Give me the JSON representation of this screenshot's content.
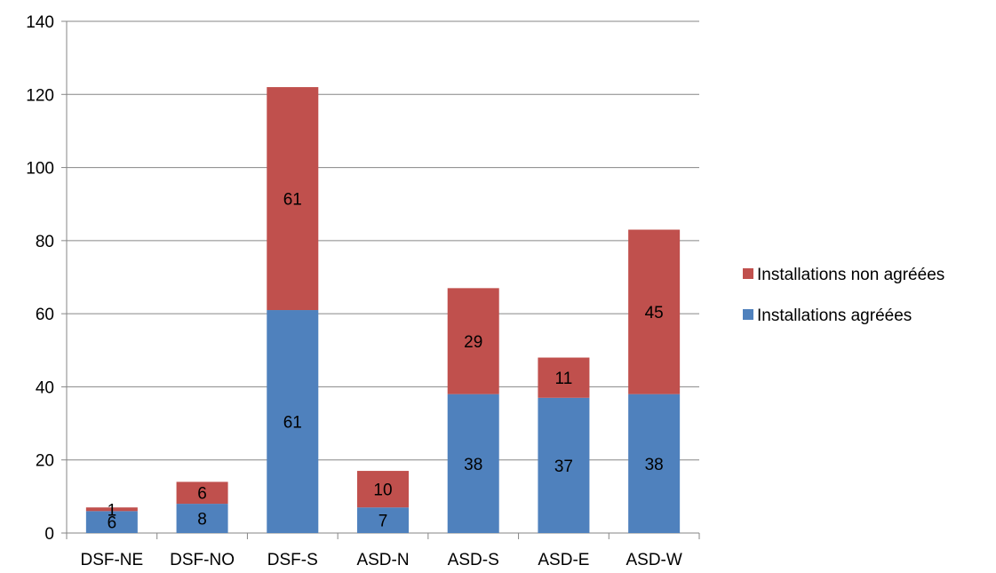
{
  "chart_data": {
    "type": "bar",
    "stacked": true,
    "categories": [
      "DSF-NE",
      "DSF-NO",
      "DSF-S",
      "ASD-N",
      "ASD-S",
      "ASD-E",
      "ASD-W"
    ],
    "series": [
      {
        "name": "Installations agréées",
        "values": [
          6,
          8,
          61,
          7,
          38,
          37,
          38
        ],
        "color": "#4F81BD"
      },
      {
        "name": "Installations non agréées",
        "values": [
          1,
          6,
          61,
          10,
          29,
          11,
          45
        ],
        "color": "#C0504D"
      }
    ],
    "ylim": [
      0,
      140
    ],
    "yticks": [
      0,
      20,
      40,
      60,
      80,
      100,
      120,
      140
    ],
    "grid": true,
    "legend_position": "right"
  }
}
